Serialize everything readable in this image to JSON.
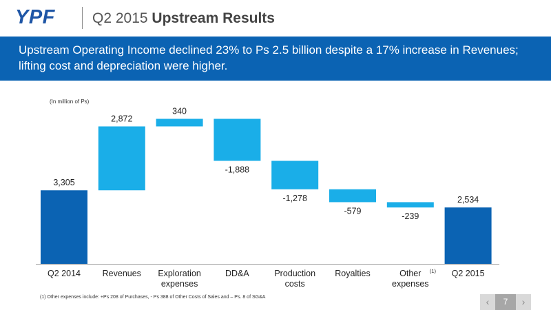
{
  "header": {
    "logo": "YPF",
    "title_prefix": "Q2 2015 ",
    "title_bold": "Upstream Results"
  },
  "banner": {
    "text": "Upstream Operating Income declined 23% to Ps 2.5 billion despite a 17% increase in Revenues; lifting cost and depreciation were higher."
  },
  "units_note": "(In million of Ps)",
  "footnote": "(1) Other expenses include: +Ps 208 of Purchases, - Ps 388 of Other Costs of Sales and – Ps. 8 of SG&A",
  "pager": {
    "page": "7",
    "prev_icon": "chevron-left-icon",
    "next_icon": "chevron-right-icon"
  },
  "colors": {
    "brand": "#0b63b3",
    "total_bar": "#0b63b3",
    "step_bar": "#1aaee8",
    "logo": "#1f56a6"
  },
  "chart_data": {
    "type": "bar",
    "subtype": "waterfall",
    "categories": [
      [
        "Q2 2014"
      ],
      [
        "Revenues"
      ],
      [
        "Exploration",
        "expenses"
      ],
      [
        "DD&A"
      ],
      [
        "Production",
        "costs"
      ],
      [
        "Royalties"
      ],
      [
        "Other",
        "expenses"
      ],
      [
        "Q2 2015"
      ]
    ],
    "category_superscripts": [
      "",
      "",
      "",
      "",
      "",
      "",
      "(1)",
      ""
    ],
    "values": [
      3305,
      2872,
      340,
      -1888,
      -1278,
      -579,
      -239,
      2534
    ],
    "value_labels": [
      "3,305",
      "2,872",
      "340",
      "-1,888",
      "-1,278",
      "-579",
      "-239",
      "2,534"
    ],
    "kinds": [
      "total",
      "delta",
      "delta",
      "delta",
      "delta",
      "delta",
      "delta",
      "total"
    ]
  }
}
